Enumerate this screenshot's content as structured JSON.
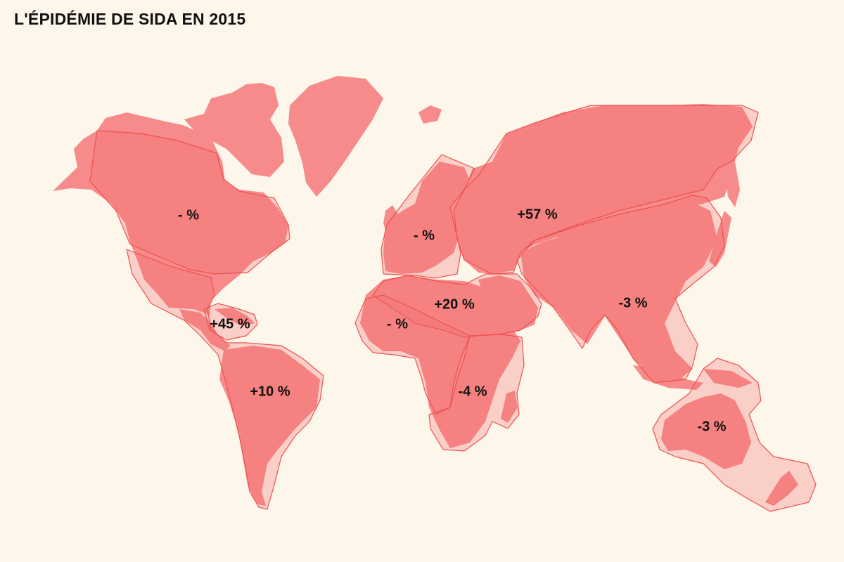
{
  "title": "L'ÉPIDÉMIE DE SIDA EN 2015",
  "colors": {
    "background": "#fdf6ea",
    "land": "#f78a8a",
    "region_fill": "#f26a6a",
    "region_stroke": "#ef5050",
    "label": "#111111"
  },
  "regions": [
    {
      "id": "north-america",
      "label": "- %"
    },
    {
      "id": "caribbean",
      "label": "+45 %"
    },
    {
      "id": "latin-america",
      "label": "+10 %"
    },
    {
      "id": "western-central-europe",
      "label": "- %"
    },
    {
      "id": "eastern-europe-central-asia",
      "label": "+57 %"
    },
    {
      "id": "middle-east-north-africa",
      "label": "+20 %"
    },
    {
      "id": "western-central-africa",
      "label": "- %"
    },
    {
      "id": "eastern-southern-africa",
      "label": "-4 %"
    },
    {
      "id": "asia",
      "label": "-3 %"
    },
    {
      "id": "oceania",
      "label": "-3 %"
    }
  ]
}
